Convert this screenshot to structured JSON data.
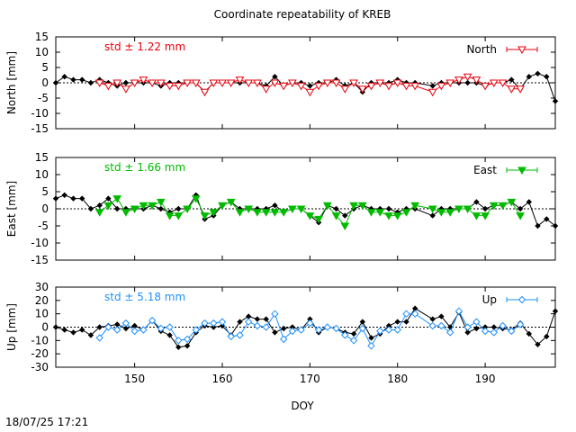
{
  "title": "Coordinate repeatability of KREB",
  "timestamp": "18/07/25 17:21",
  "xlabel": "DOY",
  "chart_data": {
    "type": "line",
    "title": "Coordinate repeatability of KREB",
    "xlabel": "DOY",
    "xlim": [
      141,
      198
    ],
    "xticks": [
      150,
      160,
      170,
      180,
      190
    ],
    "grid": false,
    "panels": [
      {
        "ylabel": "North [mm]",
        "ylim": [
          -15,
          15
        ],
        "yticks": [
          -15,
          -10,
          -5,
          0,
          5,
          10,
          15
        ],
        "std_label": "std ± 1.22 mm",
        "color": "#e8000b",
        "marker": "triangle-down-open",
        "series": [
          {
            "name": "North",
            "x": [
              146,
              147,
              148,
              149,
              150,
              151,
              152,
              153,
              154,
              155,
              156,
              157,
              158,
              159,
              160,
              161,
              162,
              163,
              164,
              165,
              166,
              167,
              168,
              169,
              170,
              171,
              172,
              173,
              174,
              175,
              176,
              177,
              178,
              179,
              180,
              181,
              182,
              184,
              185,
              186,
              187,
              188,
              189,
              190,
              191,
              192,
              193,
              194
            ],
            "y": [
              0,
              -1,
              0,
              -2,
              0,
              1,
              0,
              0,
              -1,
              -1,
              0,
              0,
              -3,
              0,
              0,
              0,
              1,
              0,
              0,
              -2,
              0,
              -1,
              0,
              -1,
              -3,
              -1,
              0,
              0,
              -2,
              0,
              -2,
              -1,
              0,
              -1,
              0,
              -1,
              -1,
              -3,
              -1,
              0,
              1,
              2,
              1,
              -1,
              0,
              0,
              -2,
              -2
            ]
          },
          {
            "name": "",
            "x": [
              141,
              142,
              143,
              144,
              145,
              146,
              147,
              148,
              149,
              150,
              151,
              152,
              153,
              154,
              155,
              156,
              157,
              158,
              159,
              160,
              161,
              162,
              163,
              164,
              165,
              166,
              167,
              168,
              169,
              170,
              171,
              172,
              173,
              174,
              175,
              176,
              177,
              178,
              179,
              180,
              181,
              182,
              184,
              185,
              186,
              187,
              188,
              189,
              190,
              191,
              192,
              193,
              194,
              195,
              196,
              197,
              198
            ],
            "y": [
              0,
              2,
              1,
              1,
              0,
              1,
              0,
              -1,
              0,
              0,
              0,
              0,
              -1,
              0,
              0,
              0,
              0,
              -3,
              0,
              0,
              0,
              0,
              0,
              0,
              -1,
              2,
              -1,
              0,
              0,
              -1,
              0,
              0,
              1,
              -1,
              0,
              -3,
              0,
              0,
              0,
              1,
              0,
              0,
              -1,
              0,
              0,
              0,
              0,
              0,
              -1,
              0,
              0,
              1,
              -2,
              2,
              3,
              2,
              -6
            ]
          }
        ]
      },
      {
        "ylabel": "East [mm]",
        "ylim": [
          -15,
          15
        ],
        "yticks": [
          -15,
          -10,
          -5,
          0,
          5,
          10,
          15
        ],
        "std_label": "std ± 1.66 mm",
        "color": "#00bb00",
        "marker": "triangle-down-filled",
        "series": [
          {
            "name": "East",
            "x": [
              146,
              147,
              148,
              149,
              150,
              151,
              152,
              153,
              154,
              155,
              156,
              157,
              158,
              159,
              160,
              161,
              162,
              163,
              164,
              165,
              166,
              167,
              168,
              169,
              170,
              171,
              172,
              173,
              174,
              175,
              176,
              177,
              178,
              179,
              180,
              181,
              182,
              184,
              185,
              186,
              187,
              188,
              189,
              190,
              191,
              192,
              193,
              194
            ],
            "y": [
              -1,
              1,
              3,
              -1,
              0,
              1,
              1,
              2,
              -2,
              -2,
              0,
              3,
              -2,
              -1,
              1,
              2,
              -1,
              0,
              -1,
              -1,
              -1,
              -1,
              0,
              0,
              -2,
              -3,
              1,
              -2,
              -5,
              1,
              1,
              -1,
              -1,
              -2,
              -2,
              -1,
              1,
              0,
              -1,
              -1,
              0,
              0,
              -2,
              -2,
              1,
              1,
              2,
              -2
            ]
          },
          {
            "name": "",
            "x": [
              141,
              142,
              143,
              144,
              145,
              146,
              147,
              148,
              149,
              150,
              151,
              152,
              153,
              154,
              155,
              156,
              157,
              158,
              159,
              160,
              161,
              162,
              163,
              164,
              165,
              166,
              167,
              168,
              169,
              170,
              171,
              172,
              173,
              174,
              175,
              176,
              177,
              178,
              179,
              180,
              181,
              182,
              184,
              185,
              186,
              187,
              188,
              189,
              190,
              191,
              192,
              193,
              194,
              195,
              196,
              197,
              198
            ],
            "y": [
              3,
              4,
              3,
              3,
              0,
              1,
              3,
              0,
              0,
              0,
              0,
              1,
              0,
              -1,
              0,
              0,
              4,
              -3,
              -2,
              1,
              2,
              0,
              0,
              0,
              0,
              1,
              -1,
              0,
              0,
              -2,
              -4,
              1,
              0,
              -2,
              0,
              1,
              0,
              0,
              0,
              -1,
              0,
              0,
              -2,
              0,
              0,
              0,
              0,
              2,
              0,
              1,
              1,
              2,
              0,
              2,
              -5,
              -3,
              -5
            ]
          }
        ]
      },
      {
        "ylabel": "Up [mm]",
        "ylim": [
          -30,
          30
        ],
        "yticks": [
          -30,
          -20,
          -10,
          0,
          10,
          20,
          30
        ],
        "std_label": "std ± 5.18 mm",
        "color": "#1e90ff",
        "marker": "diamond-open",
        "series": [
          {
            "name": "Up",
            "x": [
              146,
              147,
              148,
              149,
              150,
              151,
              152,
              153,
              154,
              155,
              156,
              157,
              158,
              159,
              160,
              161,
              162,
              163,
              164,
              165,
              166,
              167,
              168,
              169,
              170,
              171,
              172,
              173,
              174,
              175,
              176,
              177,
              178,
              179,
              180,
              181,
              182,
              184,
              185,
              186,
              187,
              188,
              189,
              190,
              191,
              192,
              193,
              194
            ],
            "y": [
              -8,
              0,
              -2,
              3,
              -3,
              -2,
              5,
              -1,
              0,
              -10,
              -9,
              -2,
              3,
              3,
              4,
              -7,
              -6,
              4,
              1,
              0,
              10,
              -9,
              -3,
              -2,
              3,
              -2,
              0,
              -1,
              -6,
              -10,
              -1,
              -14,
              -3,
              -2,
              -2,
              10,
              10,
              1,
              1,
              -4,
              12,
              0,
              4,
              -3,
              -4,
              1,
              -3,
              2
            ]
          },
          {
            "name": "",
            "x": [
              141,
              142,
              143,
              144,
              145,
              146,
              147,
              148,
              149,
              150,
              151,
              152,
              153,
              154,
              155,
              156,
              157,
              158,
              159,
              160,
              161,
              162,
              163,
              164,
              165,
              166,
              167,
              168,
              169,
              170,
              171,
              172,
              173,
              174,
              175,
              176,
              177,
              178,
              179,
              180,
              181,
              182,
              184,
              185,
              186,
              187,
              188,
              189,
              190,
              191,
              192,
              193,
              194,
              195,
              196,
              197,
              198
            ],
            "y": [
              0,
              -2,
              -4,
              -2,
              -6,
              0,
              1,
              2,
              -1,
              1,
              -2,
              5,
              -3,
              -6,
              -15,
              -14,
              -4,
              1,
              0,
              1,
              -6,
              4,
              8,
              6,
              6,
              -4,
              -1,
              0,
              -2,
              6,
              -4,
              0,
              -1,
              -4,
              -5,
              4,
              -8,
              -5,
              1,
              4,
              4,
              14,
              6,
              8,
              0,
              11,
              -4,
              -1,
              0,
              0,
              -1,
              -2,
              3,
              -5,
              -13,
              -7,
              12
            ]
          }
        ]
      }
    ]
  }
}
